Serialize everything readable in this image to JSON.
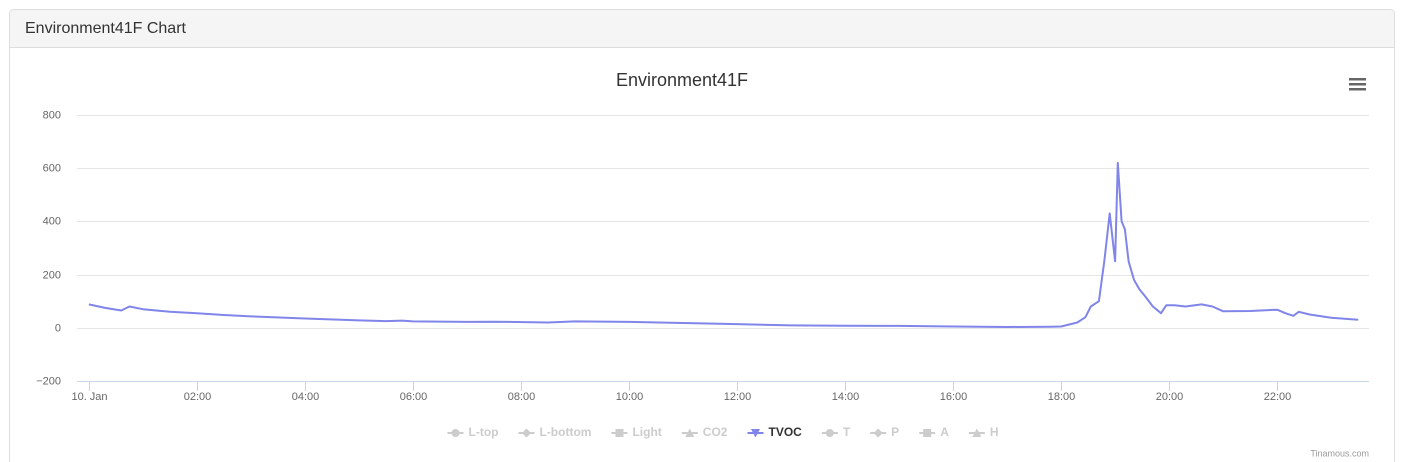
{
  "panel_title": "Environment41F Chart",
  "credits": "Tinamous.com",
  "chart_data": {
    "type": "line",
    "title": "Environment41F",
    "x": [
      0,
      0.3,
      0.6,
      0.75,
      1.0,
      1.5,
      2.0,
      2.5,
      3,
      4,
      5,
      5.5,
      5.8,
      6,
      7,
      7.5,
      8.5,
      9,
      10,
      11,
      12,
      13,
      14,
      15,
      16,
      17,
      17.8,
      18,
      18.3,
      18.45,
      18.55,
      18.7,
      18.8,
      18.9,
      19.0,
      19.05,
      19.12,
      19.18,
      19.25,
      19.35,
      19.45,
      19.55,
      19.7,
      19.85,
      19.95,
      20.1,
      20.3,
      20.6,
      20.8,
      21.0,
      21.5,
      22.0,
      22.15,
      22.3,
      22.4,
      22.6,
      23.0,
      23.5
    ],
    "xlim": [
      -0.22,
      23.7
    ],
    "xticks": [
      {
        "value": 0,
        "label": "10. Jan"
      },
      {
        "value": 2,
        "label": "02:00"
      },
      {
        "value": 4,
        "label": "04:00"
      },
      {
        "value": 6,
        "label": "06:00"
      },
      {
        "value": 8,
        "label": "08:00"
      },
      {
        "value": 10,
        "label": "10:00"
      },
      {
        "value": 12,
        "label": "12:00"
      },
      {
        "value": 14,
        "label": "14:00"
      },
      {
        "value": 16,
        "label": "16:00"
      },
      {
        "value": 18,
        "label": "18:00"
      },
      {
        "value": 20,
        "label": "20:00"
      },
      {
        "value": 22,
        "label": "22:00"
      }
    ],
    "ylim": [
      -200,
      800
    ],
    "yticks": [
      {
        "value": -200,
        "label": "−200"
      },
      0,
      200,
      400,
      600,
      800
    ],
    "grid": true,
    "legend": "bottom",
    "series": [
      {
        "name": "L-top",
        "color": "#cccccc",
        "visible": false
      },
      {
        "name": "L-bottom",
        "color": "#cccccc",
        "visible": false
      },
      {
        "name": "Light",
        "color": "#cccccc",
        "visible": false
      },
      {
        "name": "CO2",
        "color": "#cccccc",
        "visible": false
      },
      {
        "name": "TVOC",
        "color": "#8085e9",
        "visible": true,
        "values": [
          88,
          75,
          65,
          80,
          70,
          60,
          55,
          48,
          43,
          35,
          28,
          25,
          27,
          24,
          22,
          23,
          20,
          24,
          22,
          18,
          14,
          9,
          8,
          7,
          5,
          3,
          4,
          5,
          20,
          40,
          80,
          100,
          250,
          430,
          250,
          620,
          400,
          370,
          250,
          180,
          145,
          120,
          80,
          55,
          85,
          85,
          80,
          88,
          80,
          62,
          63,
          68,
          55,
          45,
          60,
          50,
          38,
          30
        ]
      },
      {
        "name": "T",
        "color": "#cccccc",
        "visible": false
      },
      {
        "name": "P",
        "color": "#cccccc",
        "visible": false
      },
      {
        "name": "A",
        "color": "#cccccc",
        "visible": false
      },
      {
        "name": "H",
        "color": "#cccccc",
        "visible": false
      }
    ]
  }
}
